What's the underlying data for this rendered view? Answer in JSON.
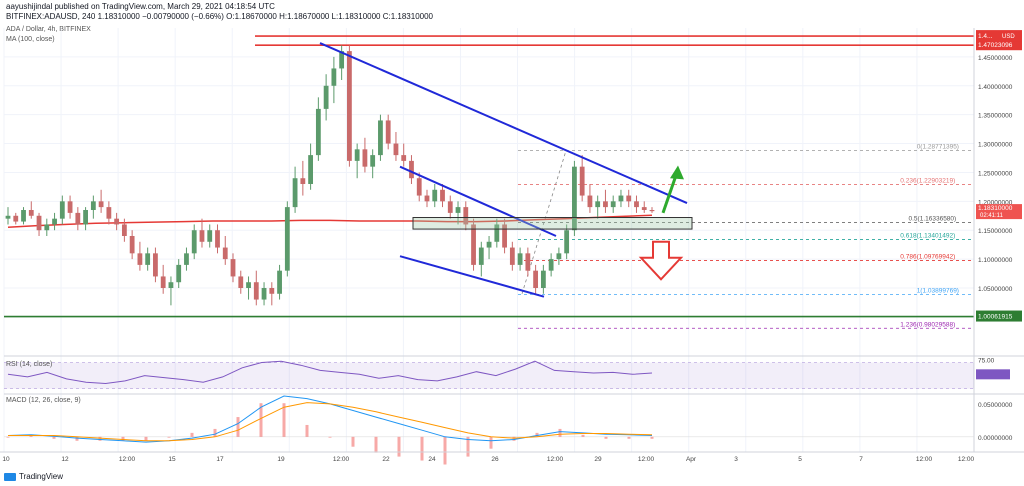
{
  "header": {
    "publisher": "aayushijindal published on TradingView.com, March 29, 2021 04:18:54 UTC",
    "ohlc": "BITFINEX:ADAUSD, 240  1.18310000  −0.00790000 (−0.66%)  O:1.18670000  H:1.18670000  L:1.18310000  C:1.18310000",
    "symbol_title": "ADA / Dollar, 4h, BITFINEX",
    "ma_label": "MA (100, close)",
    "rsi_label": "RSI (14, close)",
    "macd_label": "MACD (12, 26, close, 9)",
    "footer_brand": "TradingView"
  },
  "colors": {
    "up": "#26a69a",
    "down": "#ef5350",
    "candle_up_fill": "#5b9a6b",
    "candle_down_fill": "#c96a6a",
    "ma": "#e53935",
    "trendline": "#2029d8",
    "green_line": "#2e7d32",
    "red_line": "#e53935",
    "arrow_up": "#2eaa2e",
    "arrow_down": "#e53935",
    "rsi": "#7e57c2",
    "macd_line": "#2196f3",
    "signal_line": "#ff9800"
  },
  "chart_data": {
    "type": "candlestick",
    "title": "ADA / Dollar, 4h, BITFINEX",
    "ylim": [
      0.96,
      1.5
    ],
    "price_axis_ticks": [
      "1.45000000",
      "1.40000000",
      "1.35000000",
      "1.30000000",
      "1.25000000",
      "1.20000000",
      "1.15000000",
      "1.10000000",
      "1.05000000"
    ],
    "x_ticks": [
      "10",
      "12",
      "12:00",
      "15",
      "17",
      "19",
      "12:00",
      "22",
      "24",
      "26",
      "12:00",
      "29",
      "12:00",
      "Apr",
      "3",
      "5",
      "7",
      "12:00"
    ],
    "current_price": "1.18310000",
    "current_price_countdown": "02:41:11",
    "price_label_usd": "USD",
    "horizontal_levels": [
      {
        "name": "resistance-top",
        "value": 1.4702,
        "label": "1.47023096",
        "color": "#e53935"
      },
      {
        "name": "top-line",
        "value": 1.486,
        "label": "1.4...",
        "color": "#e53935"
      },
      {
        "name": "support-green",
        "value": 1.0006,
        "label": "1.00061915",
        "color": "#2e7d32"
      }
    ],
    "fibonacci": [
      {
        "ratio": "0",
        "value": 1.28771395,
        "label": "0(1.28771395)"
      },
      {
        "ratio": "0.236",
        "value": 1.22903219,
        "label": "0.236(1.22903219)"
      },
      {
        "ratio": "0.5",
        "value": 1.1633658,
        "label": "0.5(1.16336580)"
      },
      {
        "ratio": "0.618",
        "value": 1.13401492,
        "label": "0.618(1.13401492)"
      },
      {
        "ratio": "0.786",
        "value": 1.09769942,
        "label": "0.786(1.09769942)"
      },
      {
        "ratio": "1",
        "value": 1.03899769,
        "label": "1(1.03899769)"
      },
      {
        "ratio": "1.236",
        "value": 0.98029588,
        "label": "1.236(0.98029588)"
      }
    ],
    "candles": [
      [
        1.17,
        1.19,
        1.16,
        1.175
      ],
      [
        1.175,
        1.18,
        1.16,
        1.165
      ],
      [
        1.165,
        1.19,
        1.16,
        1.185
      ],
      [
        1.185,
        1.2,
        1.17,
        1.175
      ],
      [
        1.175,
        1.18,
        1.14,
        1.15
      ],
      [
        1.15,
        1.17,
        1.14,
        1.16
      ],
      [
        1.16,
        1.18,
        1.15,
        1.17
      ],
      [
        1.17,
        1.21,
        1.16,
        1.2
      ],
      [
        1.2,
        1.21,
        1.17,
        1.18
      ],
      [
        1.18,
        1.19,
        1.15,
        1.16
      ],
      [
        1.16,
        1.19,
        1.15,
        1.185
      ],
      [
        1.185,
        1.21,
        1.17,
        1.2
      ],
      [
        1.2,
        1.22,
        1.18,
        1.19
      ],
      [
        1.19,
        1.2,
        1.16,
        1.17
      ],
      [
        1.17,
        1.18,
        1.15,
        1.16
      ],
      [
        1.16,
        1.17,
        1.13,
        1.14
      ],
      [
        1.14,
        1.15,
        1.1,
        1.11
      ],
      [
        1.11,
        1.13,
        1.08,
        1.09
      ],
      [
        1.09,
        1.12,
        1.08,
        1.11
      ],
      [
        1.11,
        1.12,
        1.06,
        1.07
      ],
      [
        1.07,
        1.09,
        1.04,
        1.05
      ],
      [
        1.05,
        1.07,
        1.02,
        1.06
      ],
      [
        1.06,
        1.1,
        1.05,
        1.09
      ],
      [
        1.09,
        1.12,
        1.08,
        1.11
      ],
      [
        1.11,
        1.16,
        1.1,
        1.15
      ],
      [
        1.15,
        1.17,
        1.12,
        1.13
      ],
      [
        1.13,
        1.16,
        1.12,
        1.15
      ],
      [
        1.15,
        1.16,
        1.11,
        1.12
      ],
      [
        1.12,
        1.14,
        1.09,
        1.1
      ],
      [
        1.1,
        1.11,
        1.06,
        1.07
      ],
      [
        1.07,
        1.08,
        1.04,
        1.05
      ],
      [
        1.05,
        1.07,
        1.03,
        1.06
      ],
      [
        1.06,
        1.08,
        1.02,
        1.03
      ],
      [
        1.03,
        1.06,
        1.02,
        1.05
      ],
      [
        1.05,
        1.06,
        1.02,
        1.04
      ],
      [
        1.04,
        1.09,
        1.03,
        1.08
      ],
      [
        1.08,
        1.2,
        1.07,
        1.19
      ],
      [
        1.19,
        1.26,
        1.18,
        1.24
      ],
      [
        1.24,
        1.27,
        1.21,
        1.23
      ],
      [
        1.23,
        1.3,
        1.22,
        1.28
      ],
      [
        1.28,
        1.38,
        1.27,
        1.36
      ],
      [
        1.36,
        1.42,
        1.34,
        1.4
      ],
      [
        1.4,
        1.45,
        1.37,
        1.43
      ],
      [
        1.43,
        1.47,
        1.41,
        1.46
      ],
      [
        1.46,
        1.47,
        1.26,
        1.27
      ],
      [
        1.27,
        1.3,
        1.24,
        1.29
      ],
      [
        1.29,
        1.31,
        1.25,
        1.26
      ],
      [
        1.26,
        1.29,
        1.24,
        1.28
      ],
      [
        1.28,
        1.35,
        1.27,
        1.34
      ],
      [
        1.34,
        1.35,
        1.29,
        1.3
      ],
      [
        1.3,
        1.32,
        1.27,
        1.28
      ],
      [
        1.28,
        1.3,
        1.26,
        1.27
      ],
      [
        1.27,
        1.28,
        1.23,
        1.24
      ],
      [
        1.24,
        1.25,
        1.2,
        1.21
      ],
      [
        1.21,
        1.22,
        1.19,
        1.2
      ],
      [
        1.2,
        1.23,
        1.19,
        1.22
      ],
      [
        1.22,
        1.23,
        1.19,
        1.2
      ],
      [
        1.2,
        1.21,
        1.17,
        1.18
      ],
      [
        1.18,
        1.2,
        1.16,
        1.19
      ],
      [
        1.19,
        1.2,
        1.15,
        1.16
      ],
      [
        1.16,
        1.17,
        1.08,
        1.09
      ],
      [
        1.09,
        1.13,
        1.07,
        1.12
      ],
      [
        1.12,
        1.14,
        1.1,
        1.13
      ],
      [
        1.13,
        1.17,
        1.12,
        1.16
      ],
      [
        1.16,
        1.17,
        1.11,
        1.12
      ],
      [
        1.12,
        1.13,
        1.08,
        1.09
      ],
      [
        1.09,
        1.12,
        1.08,
        1.11
      ],
      [
        1.11,
        1.12,
        1.07,
        1.08
      ],
      [
        1.08,
        1.09,
        1.04,
        1.05
      ],
      [
        1.05,
        1.09,
        1.04,
        1.08
      ],
      [
        1.08,
        1.11,
        1.07,
        1.1
      ],
      [
        1.1,
        1.12,
        1.09,
        1.11
      ],
      [
        1.11,
        1.16,
        1.1,
        1.15
      ],
      [
        1.15,
        1.27,
        1.14,
        1.26
      ],
      [
        1.26,
        1.28,
        1.2,
        1.21
      ],
      [
        1.21,
        1.23,
        1.18,
        1.19
      ],
      [
        1.19,
        1.21,
        1.17,
        1.2
      ],
      [
        1.2,
        1.22,
        1.18,
        1.19
      ],
      [
        1.19,
        1.21,
        1.18,
        1.2
      ],
      [
        1.2,
        1.22,
        1.19,
        1.21
      ],
      [
        1.21,
        1.22,
        1.19,
        1.2
      ],
      [
        1.2,
        1.21,
        1.18,
        1.19
      ],
      [
        1.19,
        1.2,
        1.18,
        1.185
      ],
      [
        1.185,
        1.19,
        1.18,
        1.183
      ]
    ],
    "indicators": {
      "ma100": [
        1.155,
        1.158,
        1.16,
        1.162,
        1.163,
        1.164,
        1.165,
        1.166,
        1.166,
        1.166,
        1.167,
        1.167,
        1.166,
        1.166,
        1.166,
        1.165,
        1.165,
        1.166,
        1.168,
        1.17,
        1.172,
        1.174,
        1.176
      ],
      "rsi_axis_ticks": [
        "75.00",
        "50.00"
      ],
      "rsi": [
        52,
        48,
        55,
        45,
        40,
        38,
        42,
        50,
        47,
        44,
        40,
        48,
        62,
        70,
        72,
        66,
        58,
        55,
        52,
        46,
        50,
        44,
        42,
        48,
        56,
        50,
        60,
        72,
        58,
        56,
        54,
        55,
        52,
        54
      ],
      "macd_axis_ticks": [
        "0.05000000",
        "0.00000000"
      ],
      "macd": [
        0.002,
        0.003,
        0.001,
        -0.002,
        -0.004,
        -0.006,
        -0.008,
        -0.006,
        -0.002,
        0.004,
        0.02,
        0.045,
        0.062,
        0.058,
        0.05,
        0.04,
        0.03,
        0.02,
        0.01,
        0.0,
        -0.004,
        -0.006,
        -0.004,
        0.002,
        0.008,
        0.006,
        0.004,
        0.003,
        0.002
      ],
      "signal": [
        0.002,
        0.002,
        0.002,
        0.0,
        -0.002,
        -0.004,
        -0.006,
        -0.006,
        -0.004,
        0.0,
        0.01,
        0.028,
        0.045,
        0.052,
        0.05,
        0.045,
        0.038,
        0.03,
        0.022,
        0.014,
        0.006,
        0.0,
        -0.002,
        0.0,
        0.004,
        0.005,
        0.005,
        0.004,
        0.003
      ]
    }
  }
}
